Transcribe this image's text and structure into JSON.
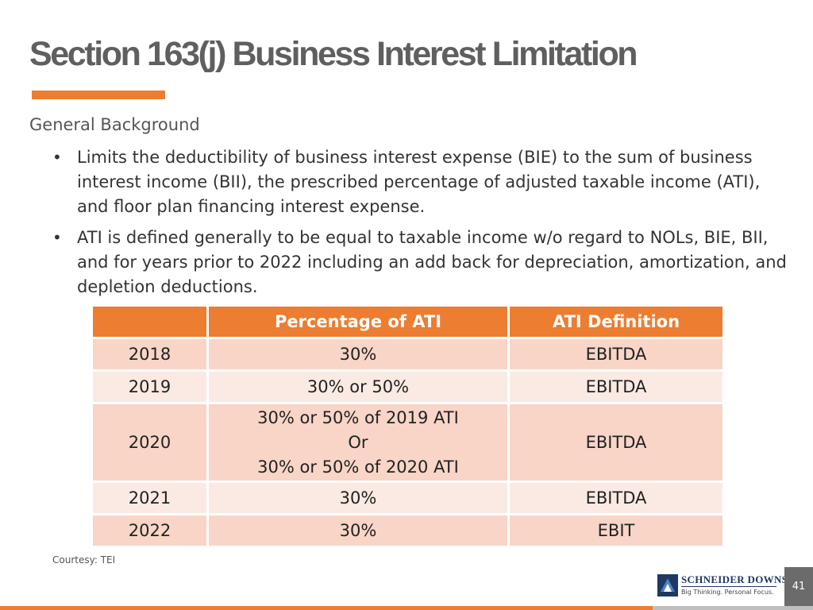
{
  "title": "Section 163(j) Business Interest Limitation",
  "subheading": "General Background",
  "bullets": [
    "Limits the deductibility of business interest expense (BIE) to the sum of business interest income (BII), the prescribed percentage of adjusted taxable income (ATI), and floor plan financing interest expense.",
    "ATI is defined generally to be equal to taxable income w/o regard to NOLs, BIE, BII, and for years prior to 2022 including an add back for depreciation, amortization, and depletion deductions."
  ],
  "table": {
    "headers": [
      "",
      "Percentage of ATI",
      "ATI Definition"
    ],
    "rows": [
      {
        "year": "2018",
        "percentage": "30%",
        "definition": "EBITDA"
      },
      {
        "year": "2019",
        "percentage": "30% or 50%",
        "definition": "EBITDA"
      },
      {
        "year": "2020",
        "percentage_lines": [
          "30% or 50% of 2019 ATI",
          "Or",
          "30% or 50% of 2020 ATI"
        ],
        "definition": "EBITDA"
      },
      {
        "year": "2021",
        "percentage": "30%",
        "definition": "EBITDA"
      },
      {
        "year": "2022",
        "percentage": "30%",
        "definition": "EBIT"
      }
    ]
  },
  "courtesy": "Courtesy: TEI",
  "logo": {
    "name": "SCHNEIDER DOWNS",
    "tagline": "Big Thinking. Personal Focus.",
    "icon": "schneider-downs-logo-mark"
  },
  "page_number": "41",
  "colors": {
    "accent": "#ed7d31",
    "row_dark": "#f8d5c7",
    "row_light": "#fbeae4",
    "title_text": "#5f5f5f"
  }
}
